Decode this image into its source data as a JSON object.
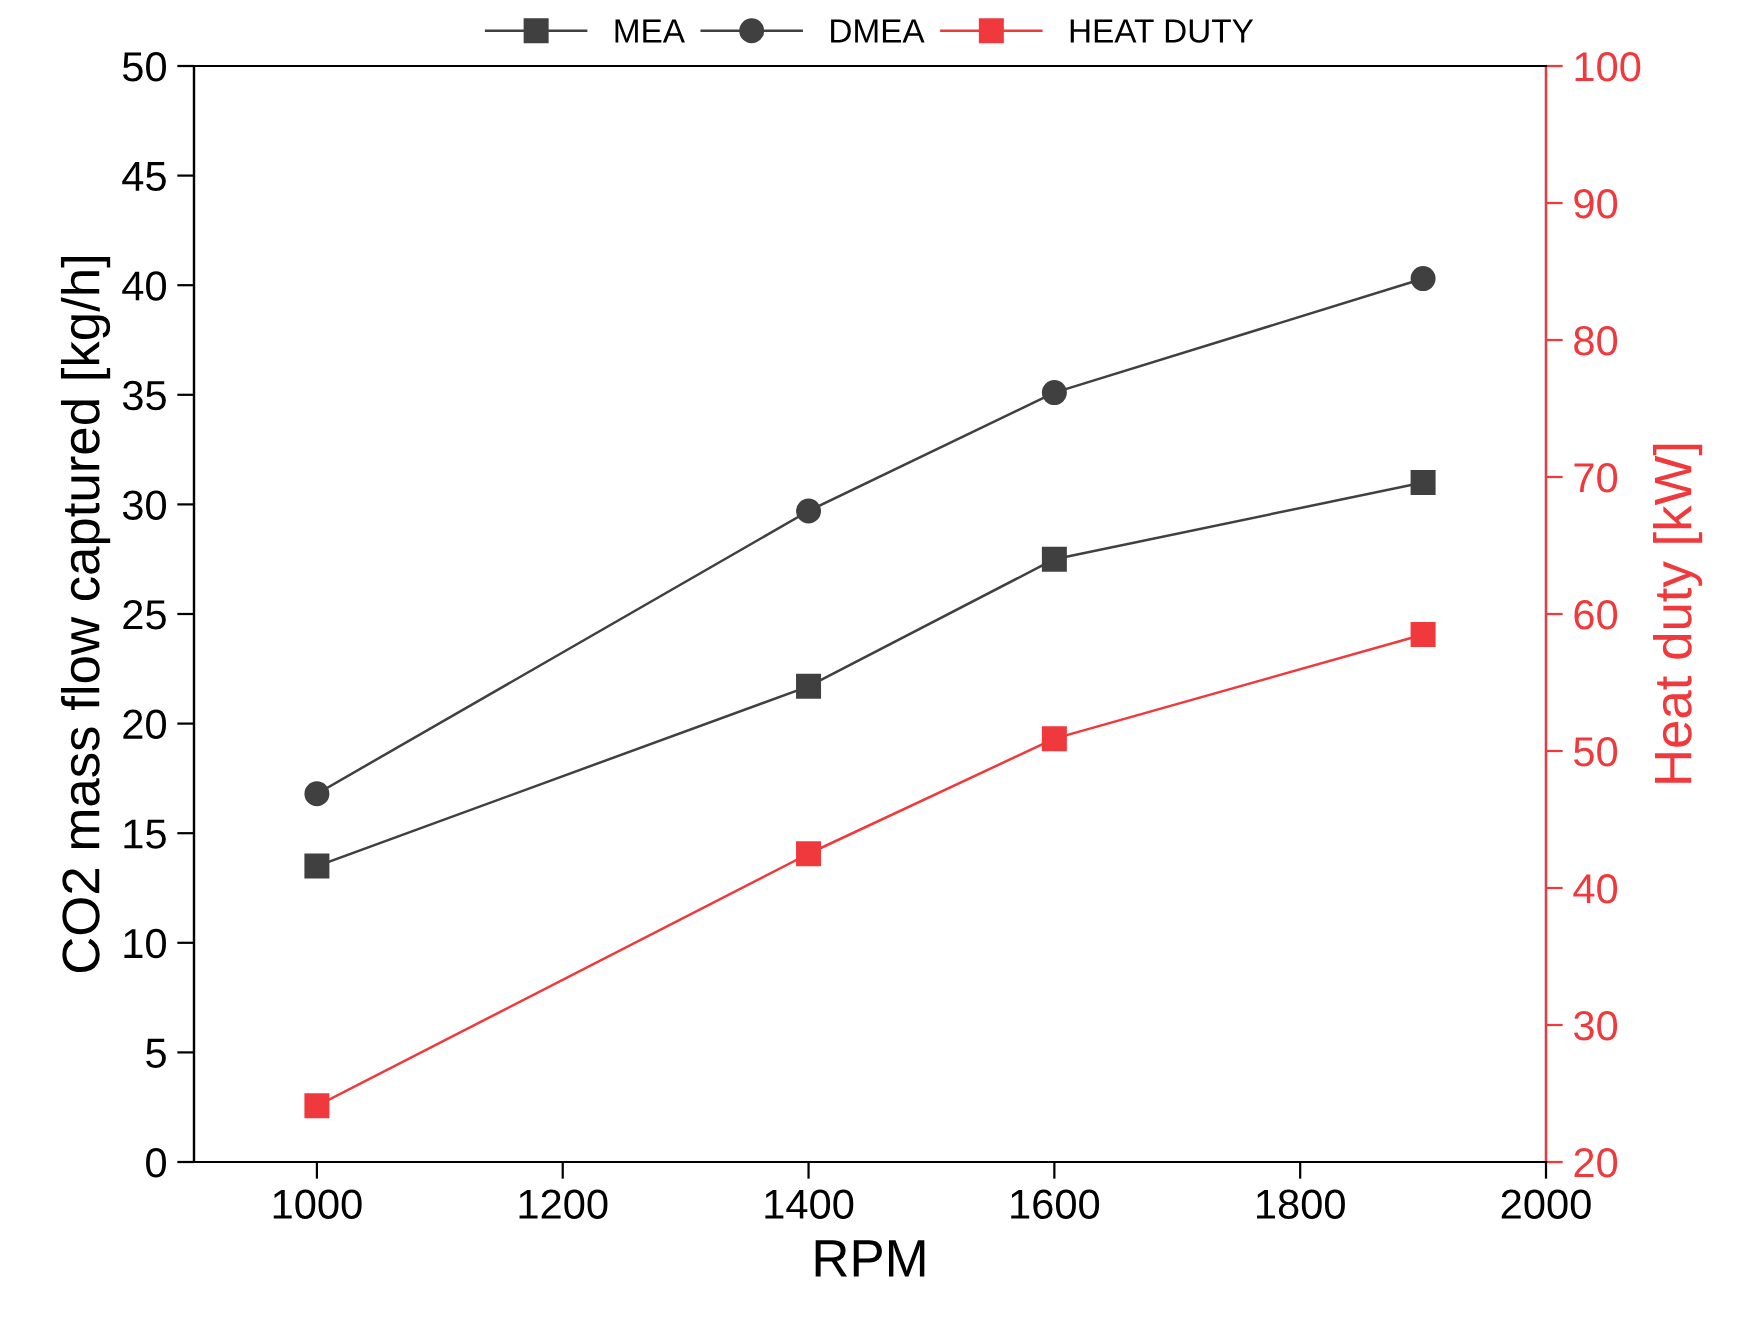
{
  "chart_data": {
    "type": "line",
    "xlabel": "RPM",
    "ylabel": "CO2 mass flow captured [kg/h]",
    "y2label": "Heat duty [kW]",
    "x": [
      1000,
      1400,
      1600,
      1900
    ],
    "series": [
      {
        "name": "MEA",
        "color": "#404040",
        "marker": "square",
        "values": [
          13.5,
          21.7,
          27.5,
          31.0
        ]
      },
      {
        "name": "DMEA",
        "color": "#404040",
        "marker": "circle",
        "values": [
          16.8,
          29.7,
          35.1,
          40.3
        ]
      },
      {
        "name": "HEAT DUTY",
        "color": "#f0393c",
        "marker": "square",
        "axis": "y2",
        "values": [
          24.1,
          42.5,
          50.9,
          58.5
        ]
      }
    ],
    "xlim": [
      900,
      2000
    ],
    "xticks": [
      1000,
      1200,
      1400,
      1600,
      1800,
      2000
    ],
    "ylim": [
      0,
      50
    ],
    "yticks": [
      0,
      5,
      10,
      15,
      20,
      25,
      30,
      35,
      40,
      45,
      50
    ],
    "y2lim": [
      20,
      100
    ],
    "y2ticks": [
      20,
      30,
      40,
      50,
      60,
      70,
      80,
      90,
      100
    ],
    "legend": "top",
    "grid": false,
    "line_style": "solid"
  }
}
